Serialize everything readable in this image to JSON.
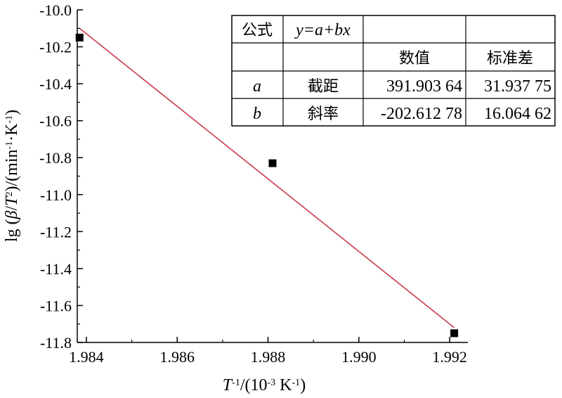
{
  "chart_data": {
    "type": "scatter",
    "xlabel": "T-1/(10-3 K-1)",
    "ylabel": "lg (β/T2)/(min-1·K-1)",
    "xlim": [
      1.9838,
      1.9924
    ],
    "ylim": [
      -11.8,
      -10.0
    ],
    "x_ticks": [
      1.984,
      1.986,
      1.988,
      1.99,
      1.992
    ],
    "x_tick_labels": [
      "1.984",
      "1.986",
      "1.988",
      "1.990",
      "1.992"
    ],
    "y_ticks": [
      -10.0,
      -10.2,
      -10.4,
      -10.6,
      -10.8,
      -11.0,
      -11.2,
      -11.4,
      -11.6,
      -11.8
    ],
    "y_tick_labels": [
      "-10.0",
      "-10.2",
      "-10.4",
      "-10.6",
      "-10.8",
      "-11.0",
      "-11.2",
      "-11.4",
      "-11.6",
      "-11.8"
    ],
    "series": [
      {
        "x": [
          1.98385,
          1.9881,
          1.9921
        ],
        "y": [
          -10.15,
          -10.83,
          -11.75
        ]
      }
    ],
    "fit_line": {
      "x": [
        1.98385,
        1.9921
      ],
      "y": [
        -10.1,
        -11.72
      ]
    },
    "colors": {
      "points": "#000000",
      "fit_line": "#c8384a"
    },
    "grid": false,
    "legend": "none",
    "fit_table": {
      "rows": [
        [
          "公式",
          "y=a+bx",
          "",
          ""
        ],
        [
          "",
          "",
          "数值",
          "标准差"
        ],
        [
          "a",
          "截距",
          "391.903 64",
          "31.937 75"
        ],
        [
          "b",
          "斜率",
          "-202.612 78",
          "16.064 62"
        ]
      ]
    }
  }
}
